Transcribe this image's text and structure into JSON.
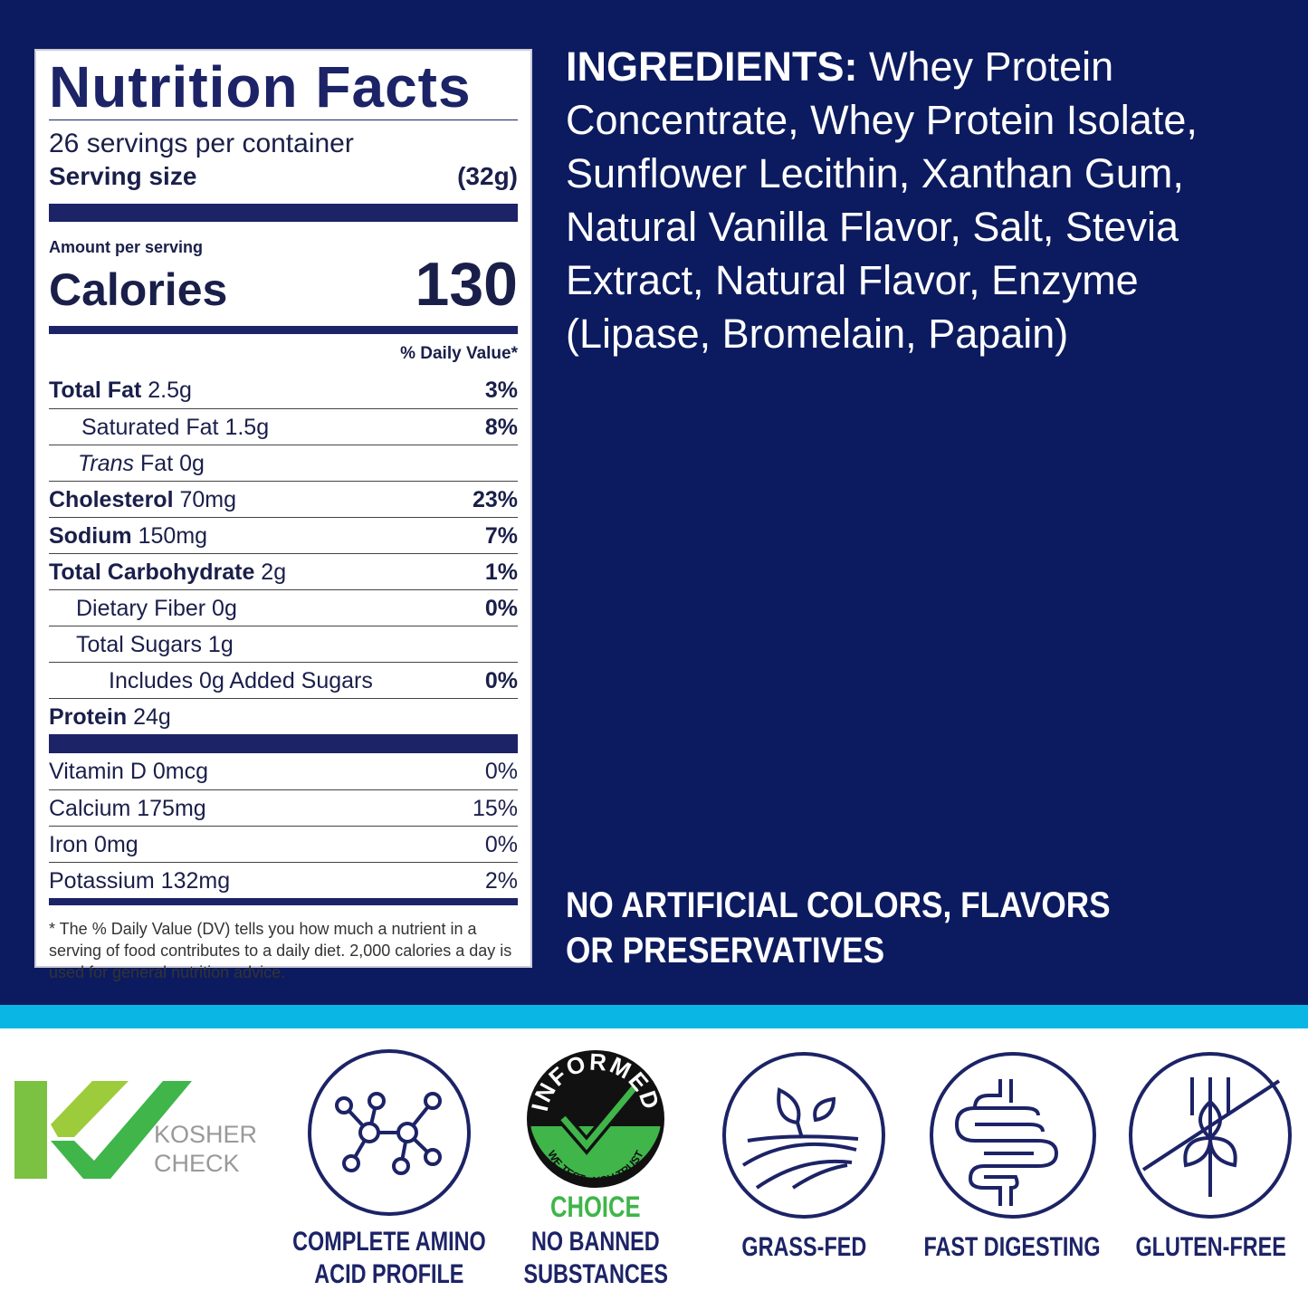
{
  "colors": {
    "navy": "#0c1b5f",
    "cyan": "#0ab7e4",
    "green": "#3fb54a"
  },
  "label": {
    "title": "Nutrition Facts",
    "servings": "26 servings per container",
    "serving_size_label": "Serving size",
    "serving_size_value": "(32g)",
    "amount_per_serving": "Amount per serving",
    "calories_label": "Calories",
    "calories_value": "130",
    "dv_header": "% Daily Value*",
    "nutrients": [
      {
        "name": "Total Fat",
        "amount": "2.5g",
        "dv": "3%"
      },
      {
        "name": "Saturated Fat",
        "amount": "1.5g",
        "dv": "8%"
      },
      {
        "name": "Trans",
        "name2": "Fat",
        "amount": "0g",
        "dv": ""
      },
      {
        "name": "Cholesterol",
        "amount": "70mg",
        "dv": "23%"
      },
      {
        "name": "Sodium",
        "amount": "150mg",
        "dv": "7%"
      },
      {
        "name": "Total Carbohydrate",
        "amount": "2g",
        "dv": "1%"
      },
      {
        "name": "Dietary Fiber",
        "amount": "0g",
        "dv": "0%"
      },
      {
        "name": "Total Sugars",
        "amount": "1g",
        "dv": ""
      },
      {
        "name": "Includes 0g Added Sugars",
        "amount": "",
        "dv": "0%"
      },
      {
        "name": "Protein",
        "amount": "24g",
        "dv": ""
      }
    ],
    "vitamins": [
      {
        "name": "Vitamin D",
        "amount": "0mcg",
        "dv": "0%"
      },
      {
        "name": "Calcium",
        "amount": "175mg",
        "dv": "15%"
      },
      {
        "name": "Iron",
        "amount": "0mg",
        "dv": "0%"
      },
      {
        "name": "Potassium",
        "amount": "132mg",
        "dv": "2%"
      }
    ],
    "footnote": "* The % Daily Value (DV) tells you how much a nutrient in a serving of food contributes to a daily diet. 2,000 calories a day is used for general nutrition advice."
  },
  "ingredients": {
    "label": "INGREDIENTS:",
    "text": " Whey Protein Concentrate, Whey Protein Isolate, Sunflower Lecithin, Xanthan Gum, Natural Vanilla Flavor, Salt, Stevia Extract, Natural Flavor, Enzyme (Lipase, Bromelain, Papain)"
  },
  "claim": "NO ARTIFICIAL COLORS, FLAVORS OR PRESERVATIVES",
  "badges": {
    "kosher": {
      "logo_text_1": "KOSHER",
      "logo_text_2": "CHECK",
      "icon": "kosher-check-logo"
    },
    "amino": {
      "caption_1": "COMPLETE AMINO",
      "caption_2": "ACID PROFILE",
      "icon": "molecule-icon"
    },
    "informed": {
      "logo_top": "INFORMED",
      "logo_bottom": "WE TEST · YOU TRUST",
      "logo_choice": "CHOICE",
      "caption_1": "NO BANNED",
      "caption_2": "SUBSTANCES",
      "icon": "informed-choice-logo"
    },
    "grass": {
      "caption": "GRASS-FED",
      "icon": "plant-field-icon"
    },
    "digest": {
      "caption": "FAST DIGESTING",
      "icon": "intestine-icon"
    },
    "gluten": {
      "caption": "GLUTEN-FREE",
      "icon": "no-wheat-icon"
    }
  }
}
